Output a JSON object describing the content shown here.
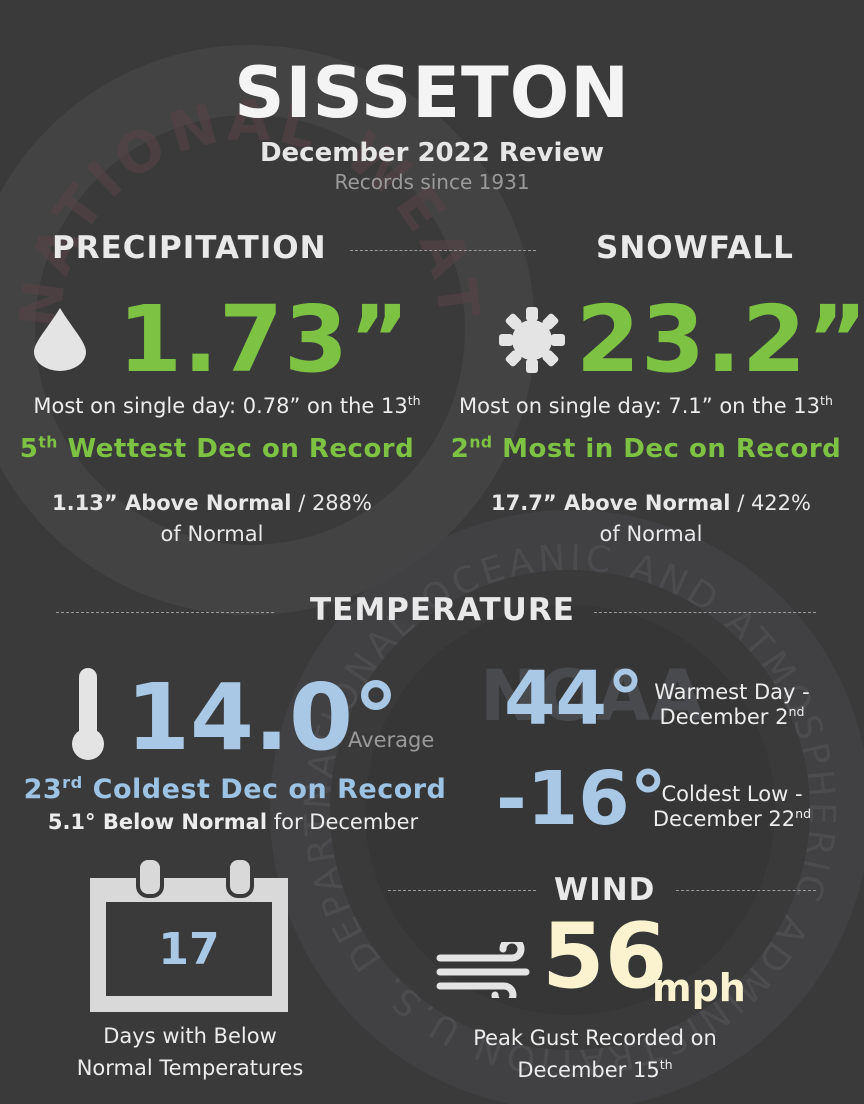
{
  "header": {
    "city": "SISSETON",
    "subtitle": "December 2022 Review",
    "records": "Records since 1931"
  },
  "precipitation": {
    "heading": "PRECIPITATION",
    "total": "1.73”",
    "single_day_prefix": "Most on single day: 0.78” on the 13",
    "single_day_suffix": "th",
    "rank_num": "5",
    "rank_suffix": "th",
    "rank_text": " Wettest Dec on Record",
    "above_bold": "1.13” Above Normal",
    "above_rest": " / 288%",
    "of_normal": "of Normal"
  },
  "snowfall": {
    "heading": "SNOWFALL",
    "total": "23.2”",
    "single_day_prefix": "Most on single day: 7.1” on the 13",
    "single_day_suffix": "th",
    "rank_num": "2",
    "rank_suffix": "nd",
    "rank_text": " Most in Dec on Record",
    "above_bold": "17.7” Above Normal",
    "above_rest": " / 422%",
    "of_normal": "of Normal"
  },
  "temperature": {
    "heading": "TEMPERATURE",
    "average": "14.0°",
    "average_label": "Average",
    "rank_num": "23",
    "rank_suffix": "rd",
    "rank_text": " Coldest Dec on Record",
    "below_bold": "5.1° Below Normal",
    "below_rest": " for December",
    "warmest": "44°",
    "warmest_label_1": "Warmest Day -",
    "warmest_label_2": "December 2",
    "warmest_suffix": "nd",
    "coldest": "-16°",
    "coldest_label_1": "Coldest Low -",
    "coldest_label_2": "December 22",
    "coldest_suffix": "nd"
  },
  "below_days": {
    "count": "17",
    "label_1": "Days with Below",
    "label_2": "Normal Temperatures"
  },
  "wind": {
    "heading": "WIND",
    "speed": "56",
    "unit": "mph",
    "label_1": "Peak Gust Recorded on",
    "label_2": "December 15",
    "label_suffix": "th"
  },
  "watermark_text": {
    "top": "NATIONAL WEATHER SERVICE",
    "bottom": "NATIONAL OCEANIC AND ATMOSPHERIC ADMINISTRATION U.S. DEPARTMENT OF COMMERCE",
    "logo": "NOAA"
  },
  "colors": {
    "background": "#3a3a3b",
    "green": "#7dc242",
    "blue": "#a8c8e6",
    "cream": "#fbf3d0"
  }
}
